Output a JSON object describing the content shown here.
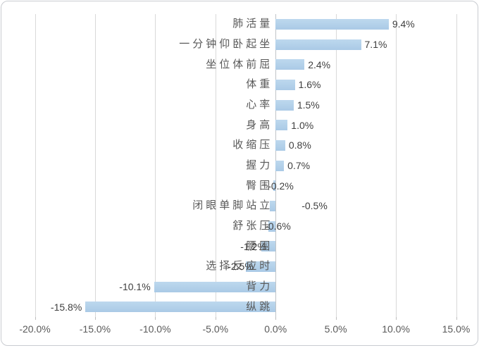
{
  "chart_data": {
    "type": "bar",
    "orientation": "horizontal",
    "title": "",
    "xlabel": "",
    "ylabel": "",
    "xlim": [
      -20,
      15
    ],
    "grid": true,
    "legend": "none",
    "xticks": [
      {
        "value": -20,
        "label": "-20.0%"
      },
      {
        "value": -15,
        "label": "-15.0%"
      },
      {
        "value": -10,
        "label": "-10.0%"
      },
      {
        "value": -5,
        "label": "-5.0%"
      },
      {
        "value": 0,
        "label": "0.0%"
      },
      {
        "value": 5,
        "label": "5.0%"
      },
      {
        "value": 10,
        "label": "10.0%"
      },
      {
        "value": 15,
        "label": "15.0%"
      }
    ],
    "points": [
      {
        "label": "肺活量",
        "value": 9.4,
        "display": "9.4%",
        "label_mode": "after"
      },
      {
        "label": "一分钟仰卧起坐",
        "value": 7.1,
        "display": "7.1%",
        "label_mode": "after"
      },
      {
        "label": "坐位体前屈",
        "value": 2.4,
        "display": "2.4%",
        "label_mode": "after"
      },
      {
        "label": "体重",
        "value": 1.6,
        "display": "1.6%",
        "label_mode": "after"
      },
      {
        "label": "心率",
        "value": 1.5,
        "display": "1.5%",
        "label_mode": "after"
      },
      {
        "label": "身高",
        "value": 1.0,
        "display": "1.0%",
        "label_mode": "after"
      },
      {
        "label": "收缩压",
        "value": 0.8,
        "display": "0.8%",
        "label_mode": "after"
      },
      {
        "label": "握力",
        "value": 0.7,
        "display": "0.7%",
        "label_mode": "after"
      },
      {
        "label": "臀围",
        "value": -0.2,
        "display": "-0.2%",
        "label_mode": "offset",
        "label_dx": -11
      },
      {
        "label": "闭眼单脚站立",
        "value": -0.5,
        "display": "-0.5%",
        "label_mode": "offset",
        "label_dx": 37
      },
      {
        "label": "舒张压",
        "value": -0.6,
        "display": "-0.6%",
        "label_mode": "offset",
        "label_dx": -15
      },
      {
        "label": "腰围",
        "value": -1.2,
        "display": "-1.2%",
        "label_mode": "offset",
        "label_dx": -50
      },
      {
        "label": "选择反应时",
        "value": -2.5,
        "display": "-2.5%",
        "label_mode": "offset",
        "label_dx": -68
      },
      {
        "label": "背力",
        "value": -10.1,
        "display": "-10.1%",
        "label_mode": "before"
      },
      {
        "label": "纵跳",
        "value": -15.8,
        "display": "-15.8%",
        "label_mode": "before"
      }
    ],
    "colors": {
      "bar_fill_top": "#bdd8ee",
      "bar_fill_bottom": "#aacae6",
      "gridline": "#d9d9d9",
      "axis_line": "#c0c4c8",
      "tick_mark": "#bfbfbf",
      "category_text": "#595959",
      "value_text": "#404040",
      "tick_text": "#595959",
      "frame_border": "#c9ccd1",
      "background": "#ffffff"
    }
  }
}
